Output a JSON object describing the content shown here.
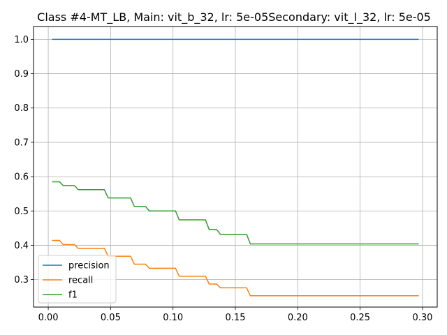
{
  "chart_data": {
    "type": "line",
    "title": "Class #4-MT_LB, Main: vit_b_32, lr: 5e-05Secondary: vit_l_32, lr: 5e-05",
    "xlabel": "",
    "ylabel": "",
    "xlim": [
      -0.0118,
      0.3118
    ],
    "ylim": [
      0.2199,
      1.0374
    ],
    "grid": true,
    "legend_position": "lower-left",
    "xticks": [
      {
        "value": 0.0,
        "label": "0.00"
      },
      {
        "value": 0.05,
        "label": "0.05"
      },
      {
        "value": 0.1,
        "label": "0.10"
      },
      {
        "value": 0.15,
        "label": "0.15"
      },
      {
        "value": 0.2,
        "label": "0.20"
      },
      {
        "value": 0.25,
        "label": "0.25"
      },
      {
        "value": 0.3,
        "label": "0.30"
      }
    ],
    "yticks": [
      {
        "value": 0.3,
        "label": "0.3"
      },
      {
        "value": 0.4,
        "label": "0.4"
      },
      {
        "value": 0.5,
        "label": "0.5"
      },
      {
        "value": 0.6,
        "label": "0.6"
      },
      {
        "value": 0.7,
        "label": "0.7"
      },
      {
        "value": 0.8,
        "label": "0.8"
      },
      {
        "value": 0.9,
        "label": "0.9"
      },
      {
        "value": 1.0,
        "label": "1.0"
      }
    ],
    "series": [
      {
        "name": "precision",
        "color": "#1f77b4",
        "points": [
          [
            0.003,
            1.0
          ],
          [
            0.297,
            1.0
          ]
        ]
      },
      {
        "name": "recall",
        "color": "#ff7f0e",
        "points": [
          [
            0.003,
            0.414
          ],
          [
            0.009,
            0.414
          ],
          [
            0.012,
            0.402
          ],
          [
            0.021,
            0.402
          ],
          [
            0.024,
            0.391
          ],
          [
            0.045,
            0.391
          ],
          [
            0.048,
            0.368
          ],
          [
            0.066,
            0.368
          ],
          [
            0.069,
            0.345
          ],
          [
            0.078,
            0.345
          ],
          [
            0.081,
            0.333
          ],
          [
            0.102,
            0.333
          ],
          [
            0.105,
            0.31
          ],
          [
            0.126,
            0.31
          ],
          [
            0.129,
            0.287
          ],
          [
            0.135,
            0.287
          ],
          [
            0.138,
            0.276
          ],
          [
            0.159,
            0.276
          ],
          [
            0.162,
            0.253
          ],
          [
            0.297,
            0.253
          ]
        ]
      },
      {
        "name": "f1",
        "color": "#2ca02c",
        "points": [
          [
            0.003,
            0.585
          ],
          [
            0.009,
            0.585
          ],
          [
            0.012,
            0.574
          ],
          [
            0.021,
            0.574
          ],
          [
            0.024,
            0.562
          ],
          [
            0.045,
            0.562
          ],
          [
            0.048,
            0.538
          ],
          [
            0.066,
            0.538
          ],
          [
            0.069,
            0.513
          ],
          [
            0.078,
            0.513
          ],
          [
            0.081,
            0.5
          ],
          [
            0.102,
            0.5
          ],
          [
            0.105,
            0.474
          ],
          [
            0.126,
            0.474
          ],
          [
            0.129,
            0.446
          ],
          [
            0.135,
            0.446
          ],
          [
            0.138,
            0.432
          ],
          [
            0.159,
            0.432
          ],
          [
            0.162,
            0.404
          ],
          [
            0.297,
            0.404
          ]
        ]
      }
    ]
  }
}
